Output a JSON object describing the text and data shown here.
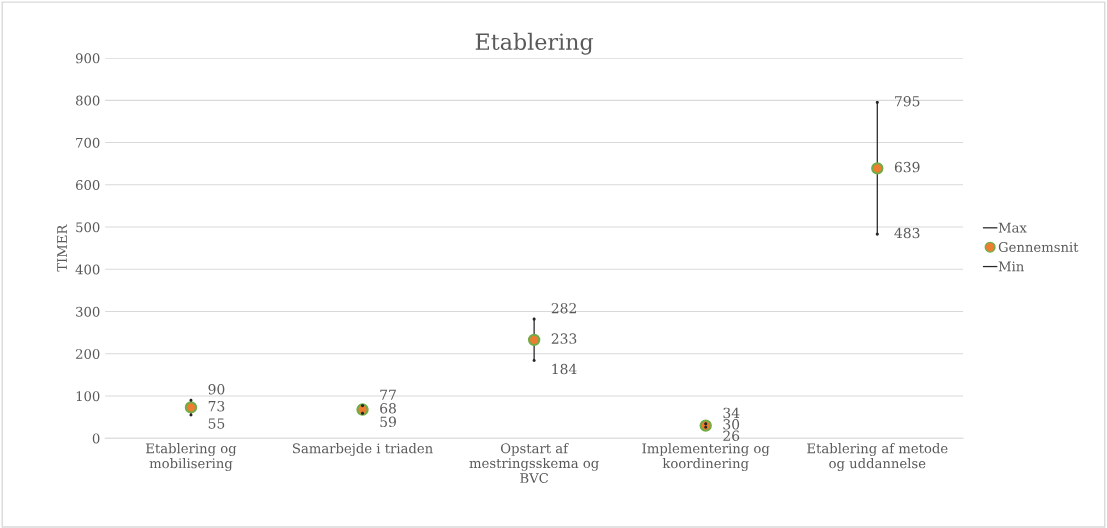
{
  "chart_data": {
    "type": "scatter",
    "title": "Etablering",
    "ylabel": "TIMER",
    "categories": [
      "Etablering og\nmobilisering",
      "Samarbejde i triaden",
      "Opstart af\nmestringsskema og\nBVC",
      "Implementering og\nkoordinering",
      "Etablering af metode\nog uddannelse"
    ],
    "series": [
      {
        "name": "Max",
        "color": "#262626",
        "marker": "none",
        "values": [
          90,
          77,
          282,
          34,
          795
        ]
      },
      {
        "name": "Gennemsnit",
        "color": "#ed7d31",
        "marker": "circle",
        "values": [
          73,
          68,
          233,
          30,
          639
        ]
      },
      {
        "name": "Min",
        "color": "#262626",
        "marker": "none",
        "values": [
          55,
          59,
          184,
          26,
          483
        ]
      }
    ],
    "ylim": [
      0,
      900
    ],
    "yticks": [
      0,
      100,
      200,
      300,
      400,
      500,
      600,
      700,
      800,
      900
    ],
    "grid": "y",
    "legend": "right",
    "data_labels": true
  }
}
